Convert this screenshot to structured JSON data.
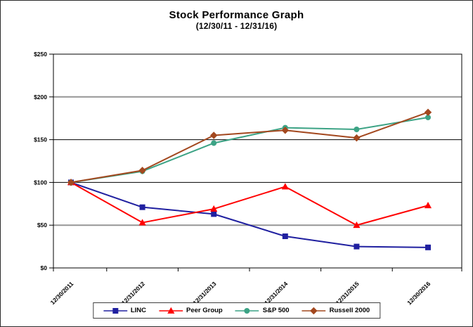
{
  "header": {
    "title": "Stock Performance Graph",
    "subtitle": "(12/30/11 - 12/31/16)"
  },
  "chart_data": {
    "type": "line",
    "title": "Stock Performance Graph",
    "subtitle": "(12/30/11 - 12/31/16)",
    "categories": [
      "12/30/2011",
      "12/31/2012",
      "12/31/2013",
      "12/31/2014",
      "12/31/2015",
      "12/30/2016"
    ],
    "series": [
      {
        "name": "LINC",
        "color": "#2020A0",
        "marker": "square",
        "values": [
          100,
          71,
          63,
          37,
          25,
          24
        ]
      },
      {
        "name": "Peer Group",
        "color": "#FF0000",
        "marker": "triangle",
        "values": [
          100,
          53,
          69,
          95,
          50,
          73
        ]
      },
      {
        "name": "S&P 500",
        "color": "#3CA385",
        "marker": "circle",
        "values": [
          100,
          113,
          146,
          164,
          162,
          176
        ]
      },
      {
        "name": "Russell 2000",
        "color": "#A3481F",
        "marker": "diamond",
        "values": [
          100,
          114,
          155,
          161,
          152,
          182
        ]
      }
    ],
    "ylim": [
      0,
      250
    ],
    "y_ticks": [
      "$0",
      "$50",
      "$100",
      "$150",
      "$200",
      "$250"
    ],
    "gridlines": [
      {
        "value": 50,
        "style": "gray"
      },
      {
        "value": 100,
        "style": "black"
      },
      {
        "value": 150,
        "style": "black"
      },
      {
        "value": 200,
        "style": "gray"
      }
    ],
    "xlabel": "",
    "ylabel": "",
    "grid": "horizontal-only",
    "legend_position": "bottom"
  }
}
